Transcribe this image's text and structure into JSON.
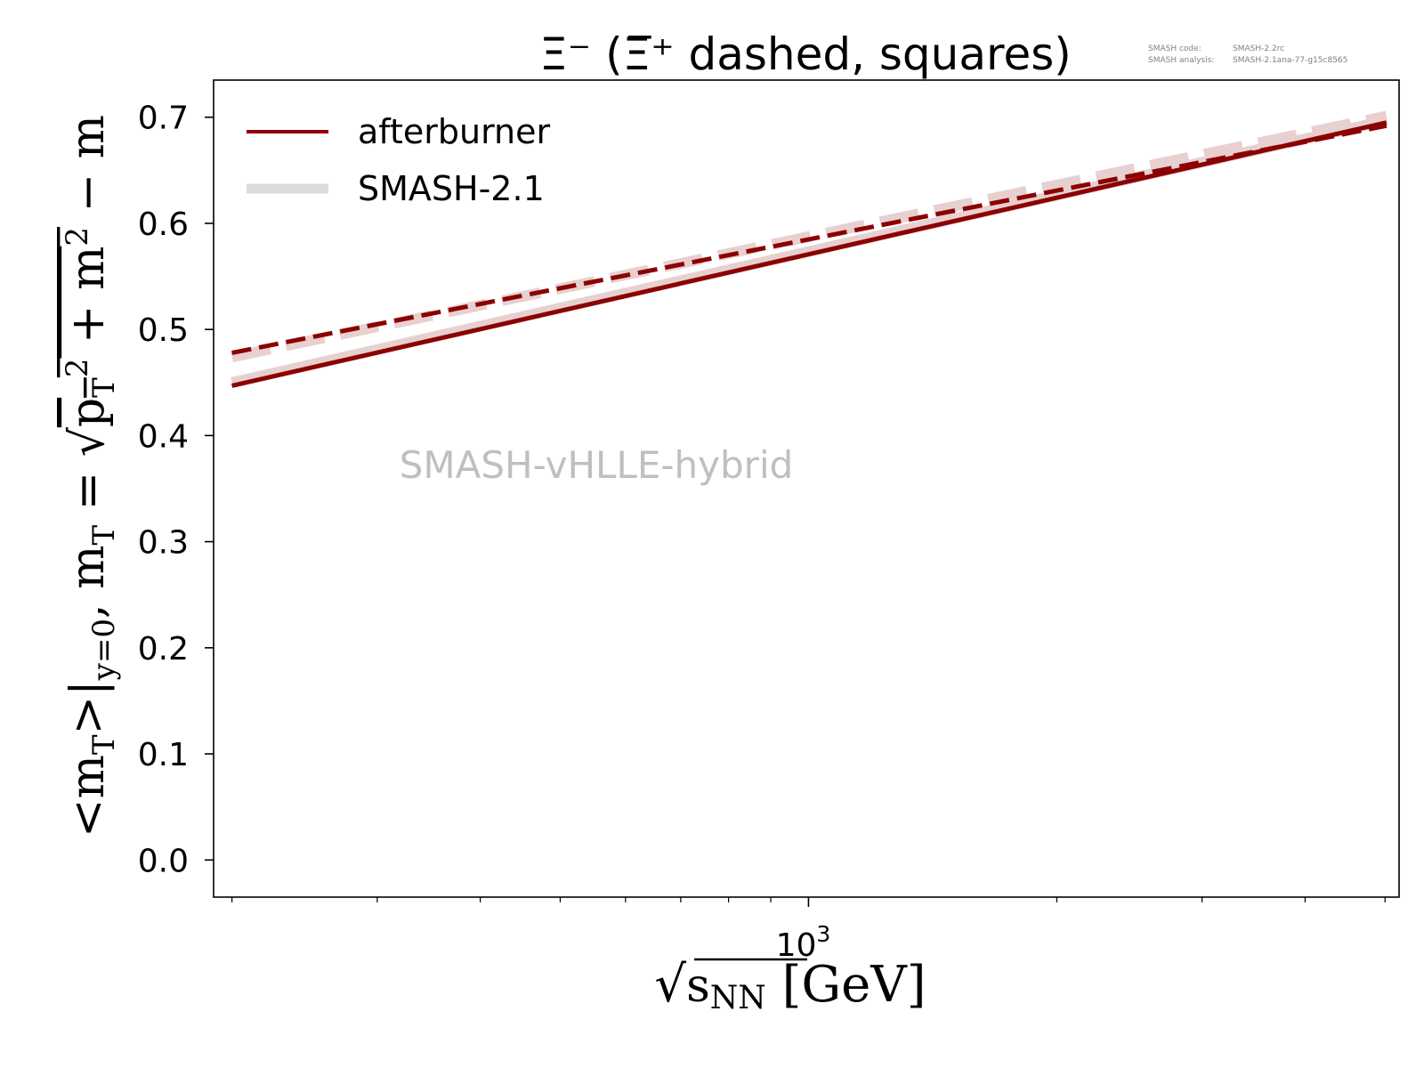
{
  "chart_data": {
    "type": "line",
    "title": "Ξ⁻ (Ξ̅⁺ dashed, squares)",
    "version_info": [
      {
        "label": "SMASH code:",
        "value": "SMASH-2.2rc"
      },
      {
        "label": "SMASH analysis:",
        "value": "SMASH-2.1ana-77-g15c8565"
      }
    ],
    "watermark": "SMASH-vHLLE-hybrid",
    "ylabel": "<m_T>|_{y=0}, m_T = √(p_T² + m²) − m",
    "xlabel": "√s_NN [GeV]",
    "x_scale": "log",
    "xlim": [
      190,
      5200
    ],
    "ylim": [
      -0.035,
      0.735
    ],
    "x_major_ticks": [
      {
        "value": 1000,
        "label_base": "10",
        "label_exp": "3"
      }
    ],
    "y_ticks": [
      {
        "value": 0.0,
        "label": "0.0"
      },
      {
        "value": 0.1,
        "label": "0.1"
      },
      {
        "value": 0.2,
        "label": "0.2"
      },
      {
        "value": 0.3,
        "label": "0.3"
      },
      {
        "value": 0.4,
        "label": "0.4"
      },
      {
        "value": 0.5,
        "label": "0.5"
      },
      {
        "value": 0.6,
        "label": "0.6"
      },
      {
        "value": 0.7,
        "label": "0.7"
      }
    ],
    "legend": {
      "placement": "top-left",
      "entries": [
        {
          "label": "afterburner",
          "color": "#8b0000"
        },
        {
          "label": "SMASH-2.1",
          "color": "#dcdcdc"
        }
      ]
    },
    "series": [
      {
        "name": "afterburner",
        "particle": "Ξ⁻",
        "style": "solid",
        "color": "#8b0000",
        "x": [
          200,
          5020
        ],
        "y": [
          0.447,
          0.695
        ]
      },
      {
        "name": "afterburner",
        "particle": "Ξ̅⁺",
        "style": "dashed",
        "color": "#8b0000",
        "x": [
          200,
          5020
        ],
        "y": [
          0.478,
          0.692
        ]
      },
      {
        "name": "SMASH-2.1",
        "particle": "Ξ⁻",
        "style": "solid",
        "color": "#e8d0d0",
        "x": [
          200,
          5020
        ],
        "y": [
          0.45,
          0.697
        ]
      },
      {
        "name": "SMASH-2.1",
        "particle": "Ξ̅⁺",
        "style": "dashed",
        "color": "#e8d0d0",
        "x": [
          200,
          5020
        ],
        "y": [
          0.474,
          0.701
        ]
      }
    ]
  }
}
